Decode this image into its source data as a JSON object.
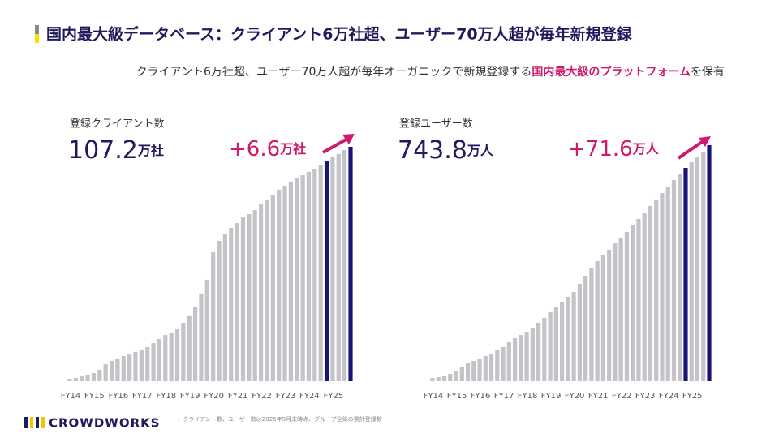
{
  "header": {
    "title": "国内最大級データベース：クライアント6万社超、ユーザー70万人超が毎年新規登録",
    "subtitle": [
      "クライアント6万社超、ユーザー70万人超が毎年オーガニックで新規登録する",
      "国内最大級のプラットフォーム",
      "を保有"
    ]
  },
  "chart_data": [
    {
      "type": "bar",
      "title": "登録クライアント数",
      "unit": "万社",
      "increase": "+6.6",
      "categories": [
        "FY14",
        null,
        null,
        null,
        "FY15",
        null,
        null,
        null,
        "FY16",
        null,
        null,
        null,
        "FY17",
        null,
        null,
        null,
        "FY18",
        null,
        null,
        null,
        "FY19",
        null,
        null,
        null,
        "FY20",
        null,
        null,
        null,
        "FY21",
        null,
        null,
        null,
        "FY22",
        null,
        null,
        null,
        "FY23",
        null,
        null,
        null,
        "FY24",
        null,
        null,
        null,
        "FY25",
        null,
        null,
        null
      ],
      "values": [
        1.1,
        1.5,
        2.2,
        3.0,
        3.7,
        5.2,
        7.8,
        9.3,
        10.4,
        11.5,
        12.2,
        13.4,
        14.5,
        15.6,
        17.4,
        19.3,
        21.1,
        22.3,
        23.7,
        26.7,
        30.1,
        34.1,
        40.1,
        46.4,
        59.0,
        64.2,
        67.2,
        70.1,
        72.3,
        74.9,
        76.4,
        78.3,
        80.9,
        83.1,
        85.3,
        87.6,
        89.4,
        91.3,
        92.8,
        94.2,
        95.7,
        97.2,
        98.7,
        100.6,
        102.4,
        103.9,
        105.7,
        107.2
      ],
      "colors": [
        "#c3c3c8",
        "#c3c3c8",
        "#c3c3c8",
        "#c3c3c8",
        "#c3c3c8",
        "#c3c3c8",
        "#c3c3c8",
        "#c3c3c8",
        "#c3c3c8",
        "#c3c3c8",
        "#c3c3c8",
        "#c3c3c8",
        "#c3c3c8",
        "#c3c3c8",
        "#c3c3c8",
        "#c3c3c8",
        "#c3c3c8",
        "#c3c3c8",
        "#c3c3c8",
        "#c3c3c8",
        "#c3c3c8",
        "#c3c3c8",
        "#c3c3c8",
        "#c3c3c8",
        "#c3c3c8",
        "#c3c3c8",
        "#c3c3c8",
        "#c3c3c8",
        "#c3c3c8",
        "#c3c3c8",
        "#c3c3c8",
        "#c3c3c8",
        "#c3c3c8",
        "#c3c3c8",
        "#c3c3c8",
        "#c3c3c8",
        "#c3c3c8",
        "#c3c3c8",
        "#c3c3c8",
        "#c3c3c8",
        "#c3c3c8",
        "#c3c3c8",
        "#c3c3c8",
        "#1a1479",
        "#c3c3c8",
        "#c3c3c8",
        "#c3c3c8",
        "#1a1479"
      ]
    },
    {
      "type": "bar",
      "title": "登録ユーザー数",
      "unit": "万人",
      "increase": "+71.6",
      "categories": [
        "FY14",
        null,
        null,
        null,
        "FY15",
        null,
        null,
        null,
        "FY16",
        null,
        null,
        null,
        "FY17",
        null,
        null,
        null,
        "FY18",
        null,
        null,
        null,
        "FY19",
        null,
        null,
        null,
        "FY20",
        null,
        null,
        null,
        "FY21",
        null,
        null,
        null,
        "FY22",
        null,
        null,
        null,
        "FY23",
        null,
        null,
        null,
        "FY24",
        null,
        null,
        null,
        "FY25",
        null,
        null,
        null
      ],
      "values": [
        10.2,
        12.8,
        17.9,
        23.0,
        30.7,
        46.0,
        56.2,
        63.9,
        71.6,
        79.2,
        86.9,
        97.1,
        107.4,
        122.7,
        135.5,
        145.7,
        155.9,
        168.7,
        184.0,
        199.4,
        217.3,
        235.2,
        250.5,
        265.8,
        281.2,
        306.7,
        332.3,
        357.8,
        378.3,
        396.2,
        414.1,
        434.5,
        452.4,
        470.3,
        490.8,
        511.2,
        531.6,
        552.1,
        572.6,
        593.0,
        613.4,
        633.9,
        651.8,
        672.2,
        690.1,
        705.5,
        720.8,
        743.8
      ],
      "colors": [
        "#c3c3c8",
        "#c3c3c8",
        "#c3c3c8",
        "#c3c3c8",
        "#c3c3c8",
        "#c3c3c8",
        "#c3c3c8",
        "#c3c3c8",
        "#c3c3c8",
        "#c3c3c8",
        "#c3c3c8",
        "#c3c3c8",
        "#c3c3c8",
        "#c3c3c8",
        "#c3c3c8",
        "#c3c3c8",
        "#c3c3c8",
        "#c3c3c8",
        "#c3c3c8",
        "#c3c3c8",
        "#c3c3c8",
        "#c3c3c8",
        "#c3c3c8",
        "#c3c3c8",
        "#c3c3c8",
        "#c3c3c8",
        "#c3c3c8",
        "#c3c3c8",
        "#c3c3c8",
        "#c3c3c8",
        "#c3c3c8",
        "#c3c3c8",
        "#c3c3c8",
        "#c3c3c8",
        "#c3c3c8",
        "#c3c3c8",
        "#c3c3c8",
        "#c3c3c8",
        "#c3c3c8",
        "#c3c3c8",
        "#c3c3c8",
        "#c3c3c8",
        "#c3c3c8",
        "#1a1479",
        "#c3c3c8",
        "#c3c3c8",
        "#c3c3c8",
        "#1a1479"
      ]
    }
  ],
  "footnote": "・ クライアント数、ユーザー数は2025年9月末時点、グループ全体の累計登録数",
  "logo": "CROWDWORKS"
}
